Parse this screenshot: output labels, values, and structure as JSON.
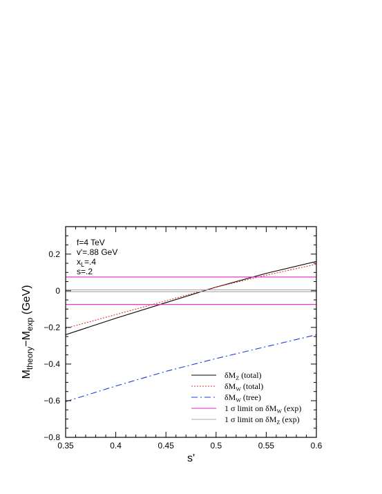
{
  "chart_data": {
    "type": "line",
    "xlabel": "s'",
    "ylabel": {
      "main": "M",
      "sub1": "theory",
      "mid": "−M",
      "sub2": "exp",
      "unit": " (GeV)"
    },
    "xlim": [
      0.35,
      0.6
    ],
    "ylim": [
      -0.8,
      0.35
    ],
    "x_ticks": [
      0.35,
      0.4,
      0.45,
      0.5,
      0.55,
      0.6
    ],
    "x_tick_labels": [
      "0.35",
      "0.4",
      "0.45",
      "0.5",
      "0.55",
      "0.6"
    ],
    "y_ticks": [
      -0.8,
      -0.6,
      -0.4,
      -0.2,
      0,
      0.2
    ],
    "y_tick_labels": [
      "−0.8",
      "−0.6",
      "−0.4",
      "−0.2",
      "0",
      "0.2"
    ],
    "annotations": [
      {
        "main": "f=4 TeV"
      },
      {
        "main": "v'=.88 GeV"
      },
      {
        "main": "x",
        "sub": "L",
        "rest": "=.4"
      },
      {
        "main": "s=.2"
      }
    ],
    "legend_placement": "bottom-right",
    "series": [
      {
        "legend": {
          "main": "δM",
          "sub": "Z",
          "rest": " (total)"
        },
        "color": "#000000",
        "dash": "none",
        "x": [
          0.35,
          0.4,
          0.45,
          0.5,
          0.55,
          0.6
        ],
        "y": [
          -0.24,
          -0.15,
          -0.065,
          0.02,
          0.095,
          0.16
        ]
      },
      {
        "legend": {
          "main": "δM",
          "sub": "W",
          "rest": " (total)"
        },
        "color": "#e03030",
        "dash": "2,2",
        "x": [
          0.35,
          0.4,
          0.45,
          0.5,
          0.55,
          0.6
        ],
        "y": [
          -0.205,
          -0.13,
          -0.055,
          0.02,
          0.085,
          0.145
        ]
      },
      {
        "legend": {
          "main": "δM",
          "sub": "W",
          "rest": " (tree)"
        },
        "color": "#1a3adf",
        "dash": "9,4,2,4",
        "x": [
          0.35,
          0.4,
          0.45,
          0.5,
          0.55,
          0.6
        ],
        "y": [
          -0.605,
          -0.52,
          -0.44,
          -0.37,
          -0.305,
          -0.24
        ]
      },
      {
        "legend": {
          "main": "1 σ limit on δM",
          "sub": "W",
          "rest": " (exp)"
        },
        "color": "#e020c0",
        "dash": "none",
        "x": [
          0.35,
          0.6
        ],
        "y": [
          0.075,
          0.075
        ],
        "y2": [
          -0.075,
          -0.075
        ]
      },
      {
        "legend": {
          "main": "1 σ limit on δM",
          "sub": "Z",
          "rest": " (exp)"
        },
        "color": "#a8a8a8",
        "dash": "none",
        "x": [
          0.35,
          0.6
        ],
        "y": [
          0.005,
          0.005
        ],
        "y2": [
          -0.005,
          -0.005
        ]
      }
    ]
  }
}
